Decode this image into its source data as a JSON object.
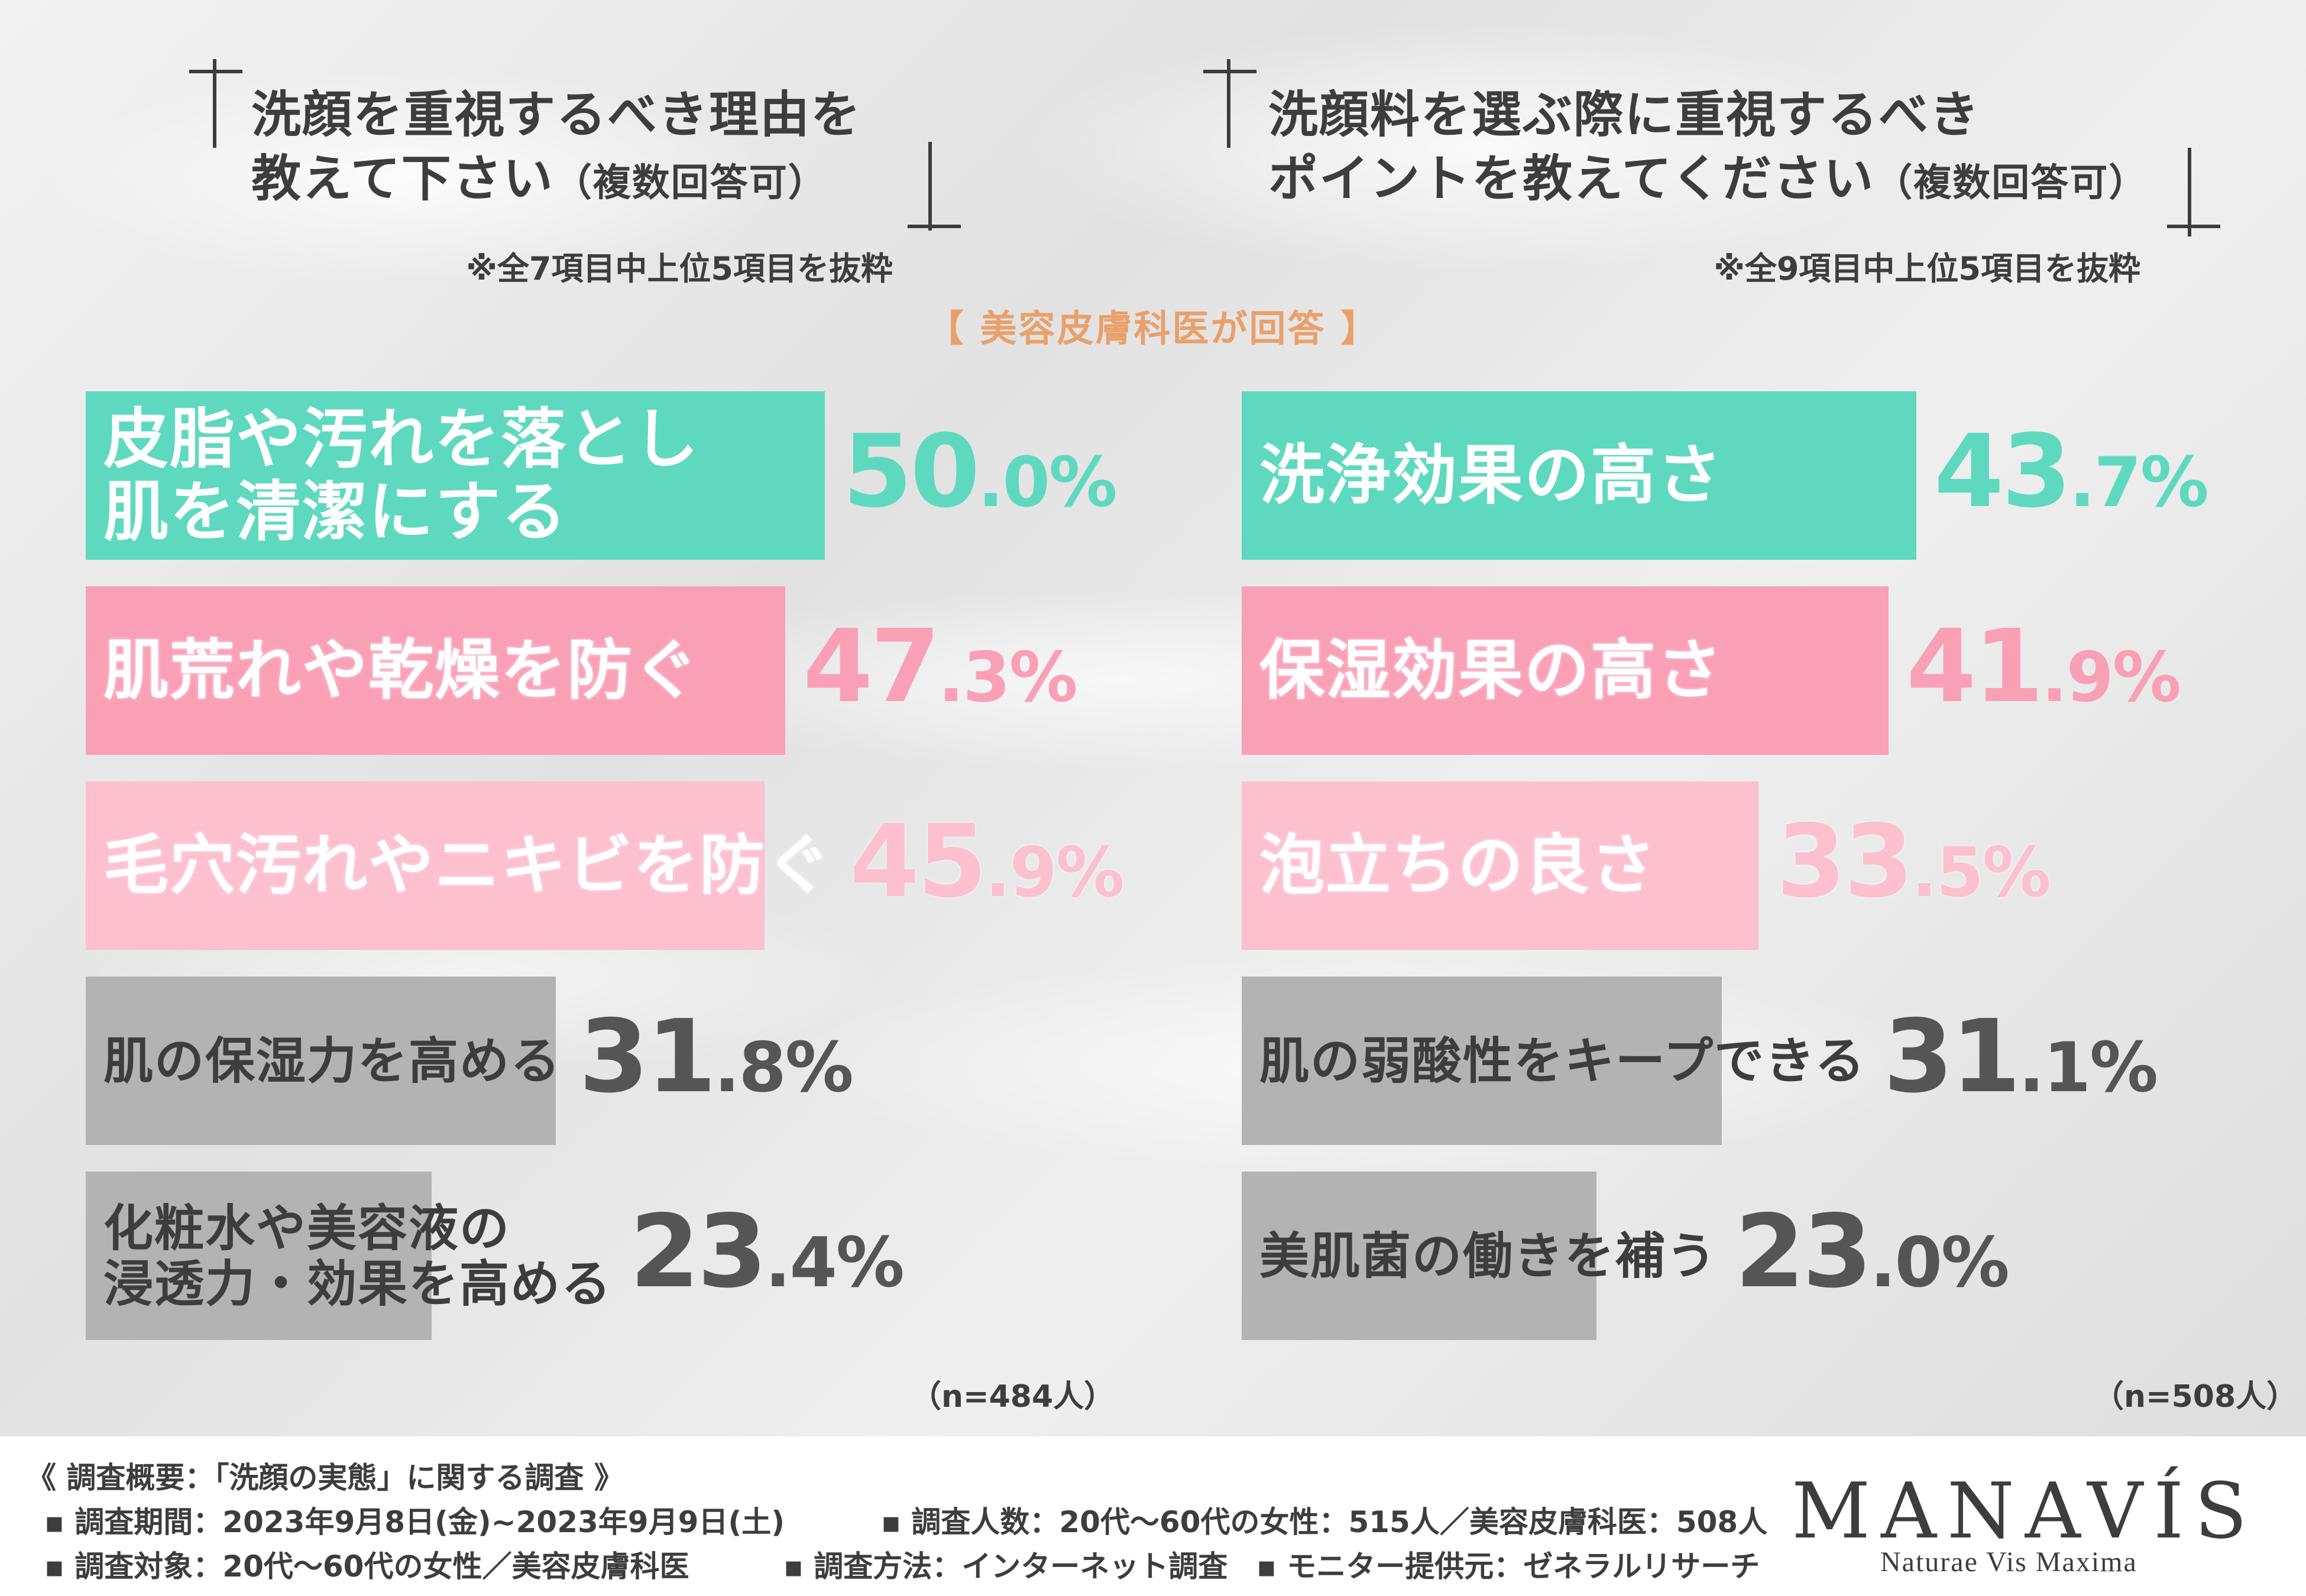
{
  "left_panel": {
    "title_line1": "洗顔を重視するべき理由を",
    "title_line2": "教えて下さい",
    "title_suffix": "（複数回答可）",
    "note": "※全7項目中上位5項目を抜粋",
    "sample": "（n=484人）"
  },
  "right_panel": {
    "title_line1": "洗顔料を選ぶ際に重視するべき",
    "title_line2": "ポイントを教えてください",
    "title_suffix": "（複数回答可）",
    "note": "※全9項目中上位5項目を抜粋",
    "sample": "（n=508人）"
  },
  "subheading": "【 美容皮膚科医が回答 】",
  "colors": {
    "teal": "#5ed9c0",
    "pink": "#f99fb6",
    "light_pink": "#fcc0cf",
    "gray": "#b3b3b3",
    "text_dark": "#3d3d3d",
    "accent_orange": "#e9a06a"
  },
  "chart_data": [
    {
      "type": "bar",
      "orientation": "horizontal",
      "categories": [
        "皮脂や汚れを落とし肌を清潔にする",
        "肌荒れや乾燥を防ぐ",
        "毛穴汚れやニキビを防ぐ",
        "肌の保湿力を高める",
        "化粧水や美容液の浸透力・効果を高める"
      ],
      "label_lines": [
        [
          "皮脂や汚れを落とし",
          "肌を清潔にする"
        ],
        [
          "肌荒れや乾燥を防ぐ"
        ],
        [
          "毛穴汚れやニキビを防ぐ"
        ],
        [
          "肌の保湿力を高める"
        ],
        [
          "化粧水や美容液の",
          "浸透力・効果を高める"
        ]
      ],
      "values": [
        50.0,
        47.3,
        45.9,
        31.8,
        23.4
      ],
      "value_int": [
        "50",
        "47",
        "45",
        "31",
        "23"
      ],
      "value_dec": [
        ".0%",
        ".3%",
        ".9%",
        ".8%",
        ".4%"
      ],
      "bar_colors": [
        "teal",
        "pink",
        "light_pink",
        "gray",
        "gray"
      ],
      "unit": "%",
      "xlim": [
        0,
        100
      ]
    },
    {
      "type": "bar",
      "orientation": "horizontal",
      "categories": [
        "洗浄効果の高さ",
        "保湿効果の高さ",
        "泡立ちの良さ",
        "肌の弱酸性をキープできる",
        "美肌菌の働きを補う"
      ],
      "label_lines": [
        [
          "洗浄効果の高さ"
        ],
        [
          "保湿効果の高さ"
        ],
        [
          "泡立ちの良さ"
        ],
        [
          "肌の弱酸性をキープできる"
        ],
        [
          "美肌菌の働きを補う"
        ]
      ],
      "values": [
        43.7,
        41.9,
        33.5,
        31.1,
        23.0
      ],
      "value_int": [
        "43",
        "41",
        "33",
        "31",
        "23"
      ],
      "value_dec": [
        ".7%",
        ".9%",
        ".5%",
        ".1%",
        ".0%"
      ],
      "bar_colors": [
        "teal",
        "pink",
        "light_pink",
        "gray",
        "gray"
      ],
      "unit": "%",
      "xlim": [
        0,
        100
      ]
    }
  ],
  "footer": {
    "heading": "《 調査概要：「洗顔の実態」に関する調査 》",
    "period": "▪ 調査期間：2023年9月8日(金)~2023年9月9日(土)",
    "respondents": "▪ 調査人数：20代～60代の女性：515人／美容皮膚科医：508人",
    "target": "▪ 調査対象：20代～60代の女性／美容皮膚科医",
    "method": "▪ 調査方法：インターネット調査",
    "provider": "▪ モニター提供元：ゼネラルリサーチ",
    "logo": "MANAVÍS",
    "logo_tagline": "Naturae Vis Maxima"
  }
}
